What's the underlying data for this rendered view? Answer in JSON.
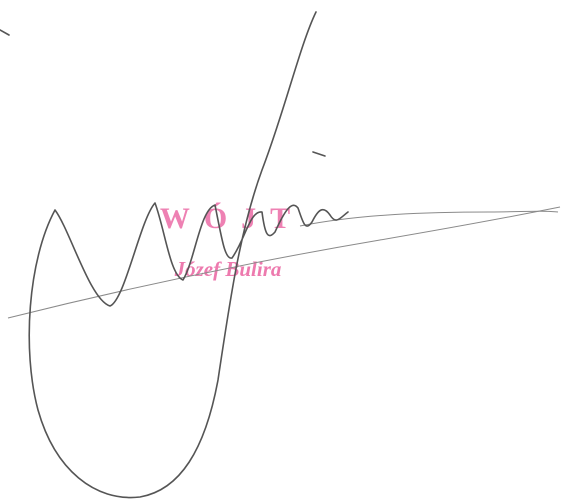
{
  "stamp": {
    "title": "WÓJT",
    "name": "Józef Bulira"
  }
}
